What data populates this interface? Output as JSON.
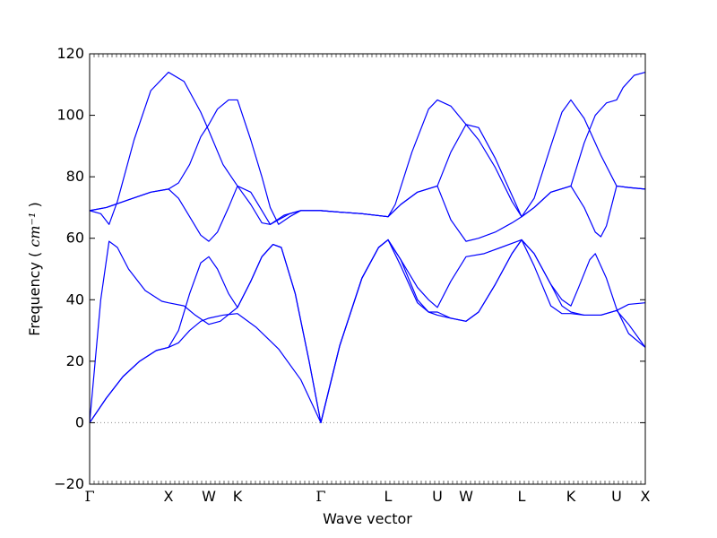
{
  "chart_data": {
    "type": "line",
    "xlabel": "Wave vector",
    "ylabel": "Frequency",
    "ylabel_unit": "cm⁻¹",
    "ylim": [
      -20,
      120
    ],
    "yticks": [
      -20,
      0,
      20,
      40,
      60,
      80,
      100,
      120
    ],
    "xlim": [
      0,
      1
    ],
    "grid": false,
    "legend": "none",
    "line_color": "#0000ff",
    "zero_line_color": "#888888",
    "xticks": [
      {
        "label": "Γ",
        "x": 0.0
      },
      {
        "label": "X",
        "x": 0.1419
      },
      {
        "label": "W",
        "x": 0.2145
      },
      {
        "label": "K",
        "x": 0.2661
      },
      {
        "label": "Γ",
        "x": 0.4161
      },
      {
        "label": "L",
        "x": 0.5371
      },
      {
        "label": "U",
        "x": 0.6258
      },
      {
        "label": "W",
        "x": 0.6774
      },
      {
        "label": "L",
        "x": 0.7774
      },
      {
        "label": "K",
        "x": 0.8661
      },
      {
        "label": "U",
        "x": 0.9484
      },
      {
        "label": "X",
        "x": 1.0
      }
    ],
    "series": [
      {
        "values": [
          [
            0.0,
            0
          ],
          [
            0.03,
            8
          ],
          [
            0.06,
            15
          ],
          [
            0.09,
            20
          ],
          [
            0.12,
            23.5
          ],
          [
            0.1419,
            24.5
          ],
          [
            0.16,
            26
          ],
          [
            0.18,
            30
          ],
          [
            0.2,
            33
          ],
          [
            0.2145,
            34
          ],
          [
            0.24,
            35
          ],
          [
            0.2661,
            35.5
          ],
          [
            0.3,
            31
          ],
          [
            0.34,
            24
          ],
          [
            0.38,
            14
          ],
          [
            0.4161,
            0
          ],
          [
            0.45,
            25
          ],
          [
            0.49,
            47
          ],
          [
            0.52,
            57
          ],
          [
            0.5371,
            59.5
          ],
          [
            0.56,
            53
          ],
          [
            0.59,
            40
          ],
          [
            0.61,
            36
          ],
          [
            0.6258,
            35
          ],
          [
            0.65,
            34
          ],
          [
            0.6774,
            33
          ],
          [
            0.7,
            36
          ],
          [
            0.73,
            45
          ],
          [
            0.76,
            55
          ],
          [
            0.7774,
            59.5
          ],
          [
            0.8,
            55
          ],
          [
            0.83,
            45
          ],
          [
            0.85,
            38
          ],
          [
            0.8661,
            36
          ],
          [
            0.89,
            35
          ],
          [
            0.92,
            35
          ],
          [
            0.9484,
            36.5
          ],
          [
            0.97,
            38.5
          ],
          [
            1.0,
            39
          ]
        ]
      },
      {
        "values": [
          [
            0.0,
            0
          ],
          [
            0.03,
            8
          ],
          [
            0.06,
            15
          ],
          [
            0.09,
            20
          ],
          [
            0.12,
            23.5
          ],
          [
            0.1419,
            24.5
          ],
          [
            0.16,
            30
          ],
          [
            0.18,
            42
          ],
          [
            0.2,
            52
          ],
          [
            0.2145,
            54
          ],
          [
            0.23,
            50
          ],
          [
            0.25,
            42
          ],
          [
            0.2661,
            37.5
          ],
          [
            0.29,
            46
          ],
          [
            0.31,
            54
          ],
          [
            0.33,
            58
          ],
          [
            0.345,
            57
          ],
          [
            0.37,
            42
          ],
          [
            0.395,
            20
          ],
          [
            0.4161,
            0
          ],
          [
            0.45,
            25
          ],
          [
            0.49,
            47
          ],
          [
            0.52,
            57
          ],
          [
            0.5371,
            59.5
          ],
          [
            0.56,
            53
          ],
          [
            0.59,
            44
          ],
          [
            0.61,
            40
          ],
          [
            0.6258,
            37.5
          ],
          [
            0.65,
            46
          ],
          [
            0.6774,
            54
          ],
          [
            0.71,
            55
          ],
          [
            0.74,
            57
          ],
          [
            0.7774,
            59.5
          ],
          [
            0.8,
            55
          ],
          [
            0.83,
            45
          ],
          [
            0.85,
            40
          ],
          [
            0.8661,
            38
          ],
          [
            0.88,
            44
          ],
          [
            0.9,
            53
          ],
          [
            0.91,
            55
          ],
          [
            0.93,
            47
          ],
          [
            0.9484,
            37
          ],
          [
            0.97,
            29
          ],
          [
            1.0,
            24.5
          ]
        ]
      },
      {
        "values": [
          [
            0.0,
            0
          ],
          [
            0.02,
            40
          ],
          [
            0.035,
            59
          ],
          [
            0.05,
            57
          ],
          [
            0.07,
            50
          ],
          [
            0.1,
            43
          ],
          [
            0.13,
            39.5
          ],
          [
            0.1419,
            39
          ],
          [
            0.17,
            38
          ],
          [
            0.19,
            35
          ],
          [
            0.2145,
            32
          ],
          [
            0.235,
            33
          ],
          [
            0.2661,
            37.5
          ],
          [
            0.29,
            46
          ],
          [
            0.31,
            54
          ],
          [
            0.33,
            58
          ],
          [
            0.345,
            57
          ],
          [
            0.37,
            42
          ],
          [
            0.395,
            20
          ],
          [
            0.4161,
            0
          ],
          [
            0.45,
            25
          ],
          [
            0.49,
            47
          ],
          [
            0.52,
            57
          ],
          [
            0.5371,
            59.5
          ],
          [
            0.56,
            51
          ],
          [
            0.59,
            39
          ],
          [
            0.61,
            36
          ],
          [
            0.6258,
            36
          ],
          [
            0.65,
            34
          ],
          [
            0.6774,
            33
          ],
          [
            0.7,
            36
          ],
          [
            0.73,
            45
          ],
          [
            0.76,
            55
          ],
          [
            0.7774,
            59.5
          ],
          [
            0.8,
            51
          ],
          [
            0.83,
            38
          ],
          [
            0.85,
            35.5
          ],
          [
            0.8661,
            35.5
          ],
          [
            0.89,
            35
          ],
          [
            0.92,
            35
          ],
          [
            0.9484,
            36.5
          ],
          [
            0.97,
            32
          ],
          [
            1.0,
            24.5
          ]
        ]
      },
      {
        "values": [
          [
            0.0,
            69
          ],
          [
            0.02,
            68
          ],
          [
            0.035,
            64.5
          ],
          [
            0.05,
            72
          ],
          [
            0.08,
            92
          ],
          [
            0.11,
            108
          ],
          [
            0.1419,
            114
          ],
          [
            0.17,
            111
          ],
          [
            0.2,
            101
          ],
          [
            0.2145,
            95
          ],
          [
            0.24,
            84
          ],
          [
            0.2661,
            77
          ],
          [
            0.29,
            71
          ],
          [
            0.31,
            65
          ],
          [
            0.325,
            64.5
          ],
          [
            0.35,
            67.5
          ],
          [
            0.38,
            69
          ],
          [
            0.4161,
            69
          ],
          [
            0.45,
            68.5
          ],
          [
            0.49,
            68
          ],
          [
            0.5371,
            67
          ],
          [
            0.55,
            71
          ],
          [
            0.58,
            88
          ],
          [
            0.61,
            102
          ],
          [
            0.6258,
            105
          ],
          [
            0.65,
            103
          ],
          [
            0.6774,
            97
          ],
          [
            0.7,
            92
          ],
          [
            0.73,
            83
          ],
          [
            0.76,
            72
          ],
          [
            0.7774,
            67
          ],
          [
            0.8,
            73
          ],
          [
            0.83,
            90
          ],
          [
            0.85,
            101
          ],
          [
            0.8661,
            105
          ],
          [
            0.89,
            99
          ],
          [
            0.92,
            87
          ],
          [
            0.9484,
            77
          ],
          [
            0.97,
            76.5
          ],
          [
            1.0,
            76
          ]
        ]
      },
      {
        "values": [
          [
            0.0,
            69
          ],
          [
            0.03,
            70
          ],
          [
            0.07,
            72.5
          ],
          [
            0.11,
            75
          ],
          [
            0.1419,
            76
          ],
          [
            0.16,
            78
          ],
          [
            0.18,
            84
          ],
          [
            0.2,
            93
          ],
          [
            0.2145,
            97
          ],
          [
            0.23,
            102
          ],
          [
            0.25,
            105
          ],
          [
            0.2661,
            105
          ],
          [
            0.29,
            92
          ],
          [
            0.31,
            80
          ],
          [
            0.325,
            70
          ],
          [
            0.34,
            64.5
          ],
          [
            0.36,
            67
          ],
          [
            0.38,
            69
          ],
          [
            0.4161,
            69
          ],
          [
            0.45,
            68.5
          ],
          [
            0.49,
            68
          ],
          [
            0.5371,
            67
          ],
          [
            0.56,
            71
          ],
          [
            0.59,
            75
          ],
          [
            0.6258,
            77
          ],
          [
            0.65,
            88
          ],
          [
            0.6774,
            97
          ],
          [
            0.7,
            96
          ],
          [
            0.73,
            86
          ],
          [
            0.76,
            74
          ],
          [
            0.7774,
            67
          ],
          [
            0.8,
            70
          ],
          [
            0.83,
            75
          ],
          [
            0.8661,
            77
          ],
          [
            0.89,
            91
          ],
          [
            0.91,
            100
          ],
          [
            0.93,
            104
          ],
          [
            0.9484,
            105
          ],
          [
            0.96,
            109
          ],
          [
            0.98,
            113
          ],
          [
            1.0,
            114
          ]
        ]
      },
      {
        "values": [
          [
            0.0,
            69
          ],
          [
            0.03,
            70
          ],
          [
            0.07,
            72.5
          ],
          [
            0.11,
            75
          ],
          [
            0.1419,
            76
          ],
          [
            0.16,
            73
          ],
          [
            0.18,
            67
          ],
          [
            0.2,
            61
          ],
          [
            0.2145,
            59
          ],
          [
            0.23,
            62
          ],
          [
            0.25,
            70
          ],
          [
            0.2661,
            77
          ],
          [
            0.29,
            75
          ],
          [
            0.31,
            69
          ],
          [
            0.325,
            64.5
          ],
          [
            0.34,
            66
          ],
          [
            0.36,
            68
          ],
          [
            0.38,
            69
          ],
          [
            0.4161,
            69
          ],
          [
            0.45,
            68.5
          ],
          [
            0.49,
            68
          ],
          [
            0.5371,
            67
          ],
          [
            0.56,
            71
          ],
          [
            0.59,
            75
          ],
          [
            0.6258,
            77
          ],
          [
            0.65,
            66
          ],
          [
            0.6774,
            59
          ],
          [
            0.7,
            60
          ],
          [
            0.73,
            62
          ],
          [
            0.76,
            65
          ],
          [
            0.7774,
            67
          ],
          [
            0.8,
            70
          ],
          [
            0.83,
            75
          ],
          [
            0.8661,
            77
          ],
          [
            0.89,
            70
          ],
          [
            0.91,
            62
          ],
          [
            0.92,
            60.5
          ],
          [
            0.93,
            64
          ],
          [
            0.9484,
            77
          ],
          [
            0.97,
            76.5
          ],
          [
            1.0,
            76
          ]
        ]
      }
    ]
  }
}
